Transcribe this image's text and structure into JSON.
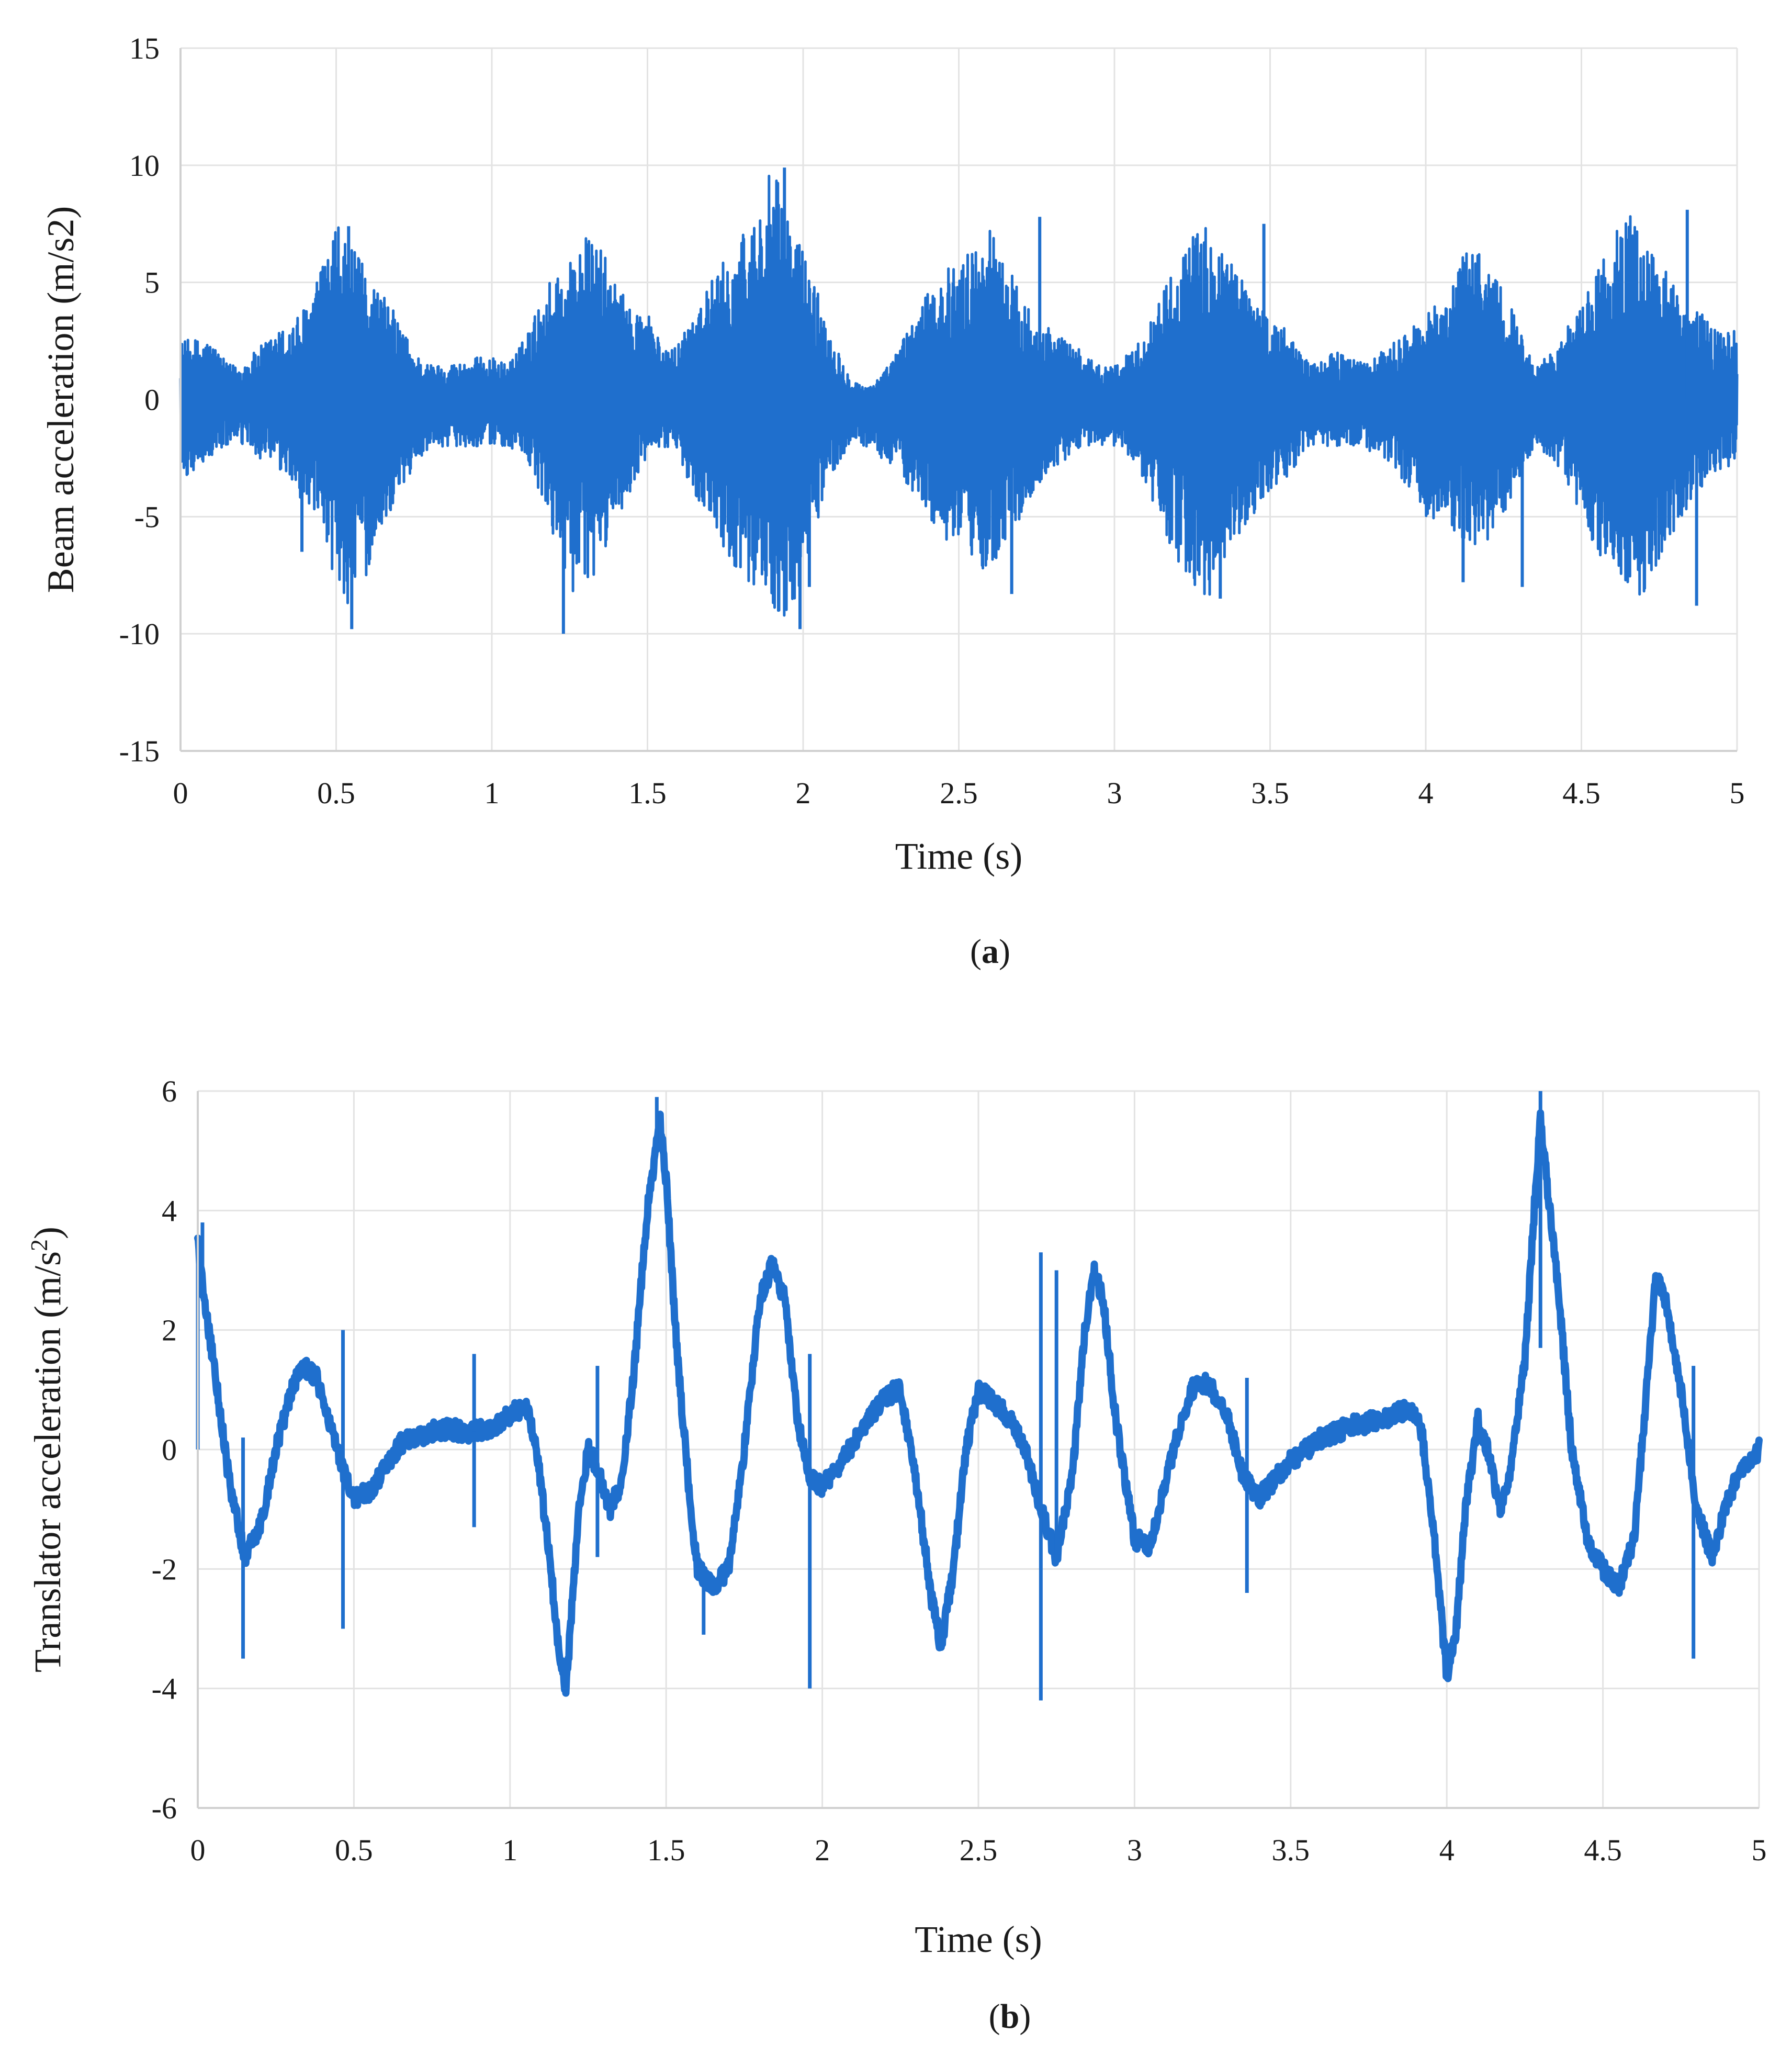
{
  "chart_data": [
    {
      "type": "line",
      "panel": "a",
      "caption_open": "(",
      "caption_letter": "a",
      "caption_close": ")",
      "title": "",
      "xlabel": "Time (s)",
      "ylabel": "Beam acceleration (m/s2)",
      "xlim": [
        0,
        5
      ],
      "ylim": [
        -15,
        15
      ],
      "xticks": [
        0,
        0.5,
        1,
        1.5,
        2,
        2.5,
        3,
        3.5,
        4,
        4.5,
        5
      ],
      "xtick_labels": [
        "0",
        "0.5",
        "1",
        "1.5",
        "2",
        "2.5",
        "3",
        "3.5",
        "4",
        "4.5",
        "5"
      ],
      "yticks": [
        -15,
        -10,
        -5,
        0,
        5,
        10,
        15
      ],
      "ytick_labels": [
        "-15",
        "-10",
        "-5",
        "0",
        "5",
        "10",
        "15"
      ],
      "grid": true,
      "legend": "none",
      "color": "#1f6fcd",
      "series": [
        {
          "envelope": {
            "t": [
              0,
              0.05,
              0.1,
              0.15,
              0.2,
              0.25,
              0.3,
              0.35,
              0.4,
              0.45,
              0.5,
              0.55,
              0.6,
              0.65,
              0.7,
              0.75,
              0.8,
              0.85,
              0.9,
              0.95,
              1.0,
              1.05,
              1.1,
              1.15,
              1.2,
              1.25,
              1.3,
              1.35,
              1.4,
              1.45,
              1.5,
              1.55,
              1.6,
              1.65,
              1.7,
              1.75,
              1.8,
              1.85,
              1.9,
              1.95,
              2.0,
              2.05,
              2.1,
              2.15,
              2.2,
              2.25,
              2.3,
              2.35,
              2.4,
              2.45,
              2.5,
              2.55,
              2.6,
              2.65,
              2.7,
              2.75,
              2.8,
              2.85,
              2.9,
              2.95,
              3.0,
              3.05,
              3.1,
              3.15,
              3.2,
              3.25,
              3.3,
              3.35,
              3.4,
              3.45,
              3.5,
              3.55,
              3.6,
              3.65,
              3.7,
              3.75,
              3.8,
              3.85,
              3.9,
              3.95,
              4.0,
              4.05,
              4.1,
              4.15,
              4.2,
              4.25,
              4.3,
              4.35,
              4.4,
              4.45,
              4.5,
              4.55,
              4.6,
              4.65,
              4.7,
              4.75,
              4.8,
              4.85,
              4.9,
              4.95,
              5.0
            ],
            "upper": [
              2.5,
              2.6,
              2.5,
              1.5,
              1.5,
              2.2,
              2.8,
              3.2,
              4.0,
              5.5,
              7.5,
              6.5,
              5.5,
              4.5,
              3.5,
              2.0,
              1.5,
              1.5,
              1.6,
              1.8,
              1.8,
              1.5,
              2.5,
              4.0,
              5.5,
              6.0,
              7.0,
              6.5,
              5.0,
              3.8,
              4.0,
              2.0,
              2.5,
              4.0,
              5.0,
              6.0,
              7.0,
              8.0,
              10.0,
              8.0,
              6.5,
              4.5,
              2.5,
              1.0,
              0.5,
              1.0,
              2.0,
              3.5,
              4.5,
              5.5,
              6.0,
              6.5,
              7.5,
              6.0,
              4.5,
              3.5,
              3.0,
              2.5,
              2.0,
              1.5,
              1.5,
              2.0,
              3.0,
              4.5,
              6.0,
              7.0,
              7.5,
              6.5,
              5.5,
              4.5,
              3.5,
              3.0,
              2.0,
              1.5,
              2.0,
              2.0,
              1.5,
              2.0,
              2.5,
              3.0,
              3.5,
              4.5,
              5.5,
              7.0,
              6.0,
              5.0,
              3.0,
              1.5,
              2.0,
              3.0,
              4.0,
              5.5,
              7.0,
              8.0,
              7.0,
              6.0,
              5.0,
              4.0,
              3.5,
              3.0,
              3.0
            ],
            "lower": [
              -3.5,
              -3.0,
              -2.5,
              -2.0,
              -2.0,
              -2.5,
              -3.0,
              -3.5,
              -4.5,
              -6.0,
              -8.0,
              -9.0,
              -7.5,
              -5.5,
              -4.0,
              -3.0,
              -2.0,
              -2.0,
              -2.0,
              -2.0,
              -2.0,
              -2.0,
              -2.5,
              -4.0,
              -6.0,
              -8.0,
              -9.0,
              -7.0,
              -5.0,
              -4.0,
              -2.5,
              -2.0,
              -2.5,
              -4.0,
              -5.0,
              -6.5,
              -7.5,
              -8.0,
              -9.0,
              -9.5,
              -8.0,
              -5.0,
              -3.0,
              -2.0,
              -2.0,
              -2.5,
              -3.0,
              -4.0,
              -5.0,
              -6.0,
              -6.5,
              -7.0,
              -7.5,
              -6.0,
              -5.0,
              -4.0,
              -3.0,
              -2.5,
              -2.0,
              -2.0,
              -2.0,
              -2.5,
              -3.5,
              -5.5,
              -7.0,
              -8.0,
              -8.5,
              -7.5,
              -6.0,
              -5.0,
              -4.0,
              -3.5,
              -2.5,
              -2.0,
              -2.0,
              -2.0,
              -2.0,
              -2.5,
              -3.0,
              -4.0,
              -5.0,
              -5.5,
              -6.0,
              -6.5,
              -6.0,
              -5.0,
              -3.5,
              -2.0,
              -2.5,
              -3.5,
              -5.0,
              -6.5,
              -7.5,
              -8.5,
              -8.5,
              -7.0,
              -5.5,
              -4.5,
              -3.5,
              -3.0,
              -3.0
            ]
          },
          "spikes": [
            [
              0.39,
              -6.5
            ],
            [
              0.55,
              -9.8
            ],
            [
              0.54,
              7.4
            ],
            [
              1.23,
              -10.0
            ],
            [
              1.94,
              9.9
            ],
            [
              1.99,
              -9.8
            ],
            [
              2.02,
              -8.0
            ],
            [
              2.67,
              -8.3
            ],
            [
              2.76,
              7.8
            ],
            [
              3.34,
              -8.5
            ],
            [
              3.48,
              7.5
            ],
            [
              4.12,
              -7.8
            ],
            [
              4.31,
              -8.0
            ],
            [
              4.84,
              8.1
            ],
            [
              4.87,
              -8.8
            ]
          ]
        }
      ]
    },
    {
      "type": "line",
      "panel": "b",
      "caption_open": "(",
      "caption_letter": "b",
      "caption_close": ")",
      "title": "",
      "xlabel": "Time (s)",
      "ylabel_main": "Translator acceleration (m/s",
      "ylabel_sup": "2",
      "ylabel_close": ")",
      "xlim": [
        0,
        5
      ],
      "ylim": [
        -6,
        6
      ],
      "xticks": [
        0,
        0.5,
        1,
        1.5,
        2,
        2.5,
        3,
        3.5,
        4,
        4.5,
        5
      ],
      "xtick_labels": [
        "0",
        "0.5",
        "1",
        "1.5",
        "2",
        "2.5",
        "3",
        "3.5",
        "4",
        "4.5",
        "5"
      ],
      "yticks": [
        -6,
        -4,
        -2,
        0,
        2,
        4,
        6
      ],
      "ytick_labels": [
        "-6",
        "-4",
        "-2",
        "0",
        "2",
        "4",
        "6"
      ],
      "grid": true,
      "legend": "none",
      "color": "#1f6fcd",
      "series": [
        {
          "t": [
            0.0,
            0.02,
            0.05,
            0.1,
            0.15,
            0.2,
            0.25,
            0.3,
            0.34,
            0.38,
            0.42,
            0.46,
            0.5,
            0.55,
            0.6,
            0.65,
            0.7,
            0.75,
            0.8,
            0.85,
            0.9,
            0.95,
            1.0,
            1.05,
            1.08,
            1.12,
            1.16,
            1.18,
            1.2,
            1.22,
            1.25,
            1.28,
            1.32,
            1.36,
            1.4,
            1.44,
            1.48,
            1.5,
            1.53,
            1.57,
            1.6,
            1.65,
            1.7,
            1.75,
            1.8,
            1.84,
            1.88,
            1.92,
            1.96,
            2.0,
            2.05,
            2.1,
            2.15,
            2.2,
            2.25,
            2.3,
            2.35,
            2.38,
            2.42,
            2.46,
            2.5,
            2.55,
            2.6,
            2.65,
            2.7,
            2.75,
            2.8,
            2.84,
            2.87,
            2.9,
            2.94,
            3.0,
            3.05,
            3.1,
            3.15,
            3.2,
            3.25,
            3.3,
            3.35,
            3.4,
            3.45,
            3.5,
            3.6,
            3.7,
            3.8,
            3.88,
            3.92,
            3.96,
            4.0,
            4.03,
            4.06,
            4.1,
            4.13,
            4.17,
            4.2,
            4.25,
            4.28,
            4.3,
            4.33,
            4.36,
            4.4,
            4.45,
            4.5,
            4.55,
            4.6,
            4.64,
            4.67,
            4.7,
            4.75,
            4.8,
            4.85,
            4.9,
            4.95,
            5.0
          ],
          "values": [
            3.5,
            2.5,
            1.5,
            -0.5,
            -1.8,
            -1.3,
            0.0,
            1.0,
            1.4,
            1.2,
            0.5,
            -0.3,
            -0.8,
            -0.7,
            -0.3,
            0.1,
            0.2,
            0.3,
            0.35,
            0.3,
            0.3,
            0.4,
            0.6,
            0.7,
            0.2,
            -1.5,
            -3.5,
            -4.0,
            -2.5,
            -1.0,
            0.0,
            -0.3,
            -1.0,
            -0.5,
            1.5,
            4.0,
            5.5,
            4.5,
            2.0,
            -0.5,
            -2.0,
            -2.3,
            -2.0,
            0.0,
            2.5,
            3.1,
            2.5,
            0.5,
            -0.5,
            -0.6,
            -0.3,
            0.1,
            0.5,
            0.9,
            1.0,
            -0.5,
            -2.5,
            -3.3,
            -2.0,
            0.0,
            1.0,
            0.8,
            0.5,
            0.0,
            -1.0,
            -1.8,
            -0.5,
            2.0,
            3.0,
            2.5,
            0.5,
            -1.5,
            -1.6,
            -0.5,
            0.5,
            1.2,
            1.0,
            0.5,
            -0.5,
            -0.8,
            -0.5,
            -0.2,
            0.2,
            0.4,
            0.5,
            0.7,
            0.3,
            -1.5,
            -3.8,
            -3.0,
            -1.0,
            0.5,
            0.0,
            -1.0,
            -0.5,
            1.5,
            4.0,
            5.5,
            4.0,
            2.5,
            0.0,
            -1.5,
            -2.0,
            -2.3,
            -1.5,
            1.0,
            2.9,
            2.5,
            1.0,
            -1.0,
            -1.8,
            -0.8,
            -0.3,
            0.0
          ],
          "spikes": [
            [
              0.0,
              0.0
            ],
            [
              0.015,
              3.8
            ],
            [
              0.145,
              0.2
            ],
            [
              0.145,
              -3.5
            ],
            [
              0.465,
              2.0
            ],
            [
              0.465,
              -3.0
            ],
            [
              0.885,
              1.6
            ],
            [
              0.885,
              -1.3
            ],
            [
              1.28,
              1.4
            ],
            [
              1.28,
              -1.8
            ],
            [
              1.47,
              5.9
            ],
            [
              1.62,
              -3.1
            ],
            [
              1.96,
              1.6
            ],
            [
              1.96,
              -4.0
            ],
            [
              2.7,
              3.3
            ],
            [
              2.7,
              -4.2
            ],
            [
              2.75,
              3.0
            ],
            [
              3.36,
              1.2
            ],
            [
              3.36,
              -2.4
            ],
            [
              4.3,
              6.0
            ],
            [
              4.3,
              1.7
            ],
            [
              4.79,
              1.4
            ],
            [
              4.79,
              -3.5
            ]
          ]
        }
      ]
    }
  ]
}
